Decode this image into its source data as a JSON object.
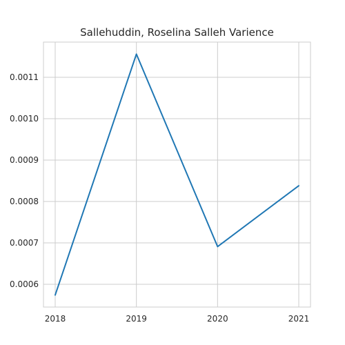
{
  "chart_data": {
    "type": "line",
    "title": "Sallehuddin, Roselina Salleh Varience",
    "xlabel": "",
    "ylabel": "",
    "x": [
      "2018",
      "2019",
      "2020",
      "2021"
    ],
    "series": [
      {
        "values": [
          0.000574,
          0.001156,
          0.000691,
          0.000838
        ],
        "color": "#1f77b4"
      }
    ],
    "yticks": [
      0.0006,
      0.0007,
      0.0008,
      0.0009,
      0.001,
      0.0011
    ],
    "ytick_labels": [
      "0.0006",
      "0.0007",
      "0.0008",
      "0.0009",
      "0.0010",
      "0.0011"
    ],
    "ylim": [
      0.000545,
      0.001185
    ],
    "grid": true,
    "style": "whitegrid"
  }
}
